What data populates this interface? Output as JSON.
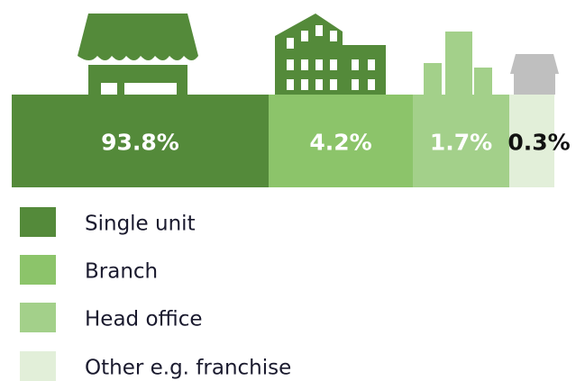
{
  "chart_data": {
    "type": "stacked-bar",
    "series": [
      {
        "name": "Single unit",
        "color": "#548a3a",
        "values": [
          93.8
        ],
        "value_labels": [
          "93.8%"
        ]
      },
      {
        "name": "Branch",
        "color": "#8cc46a",
        "values": [
          4.2
        ],
        "value_labels": [
          "4.2%"
        ]
      },
      {
        "name": "Head office",
        "color": "#a3d08a",
        "values": [
          1.7
        ],
        "value_labels": [
          "1.7%"
        ]
      },
      {
        "name": "Other e.g. franchise",
        "color": "#e2efd9",
        "values": [
          0.3
        ],
        "value_labels": [
          "0.3%"
        ]
      }
    ]
  }
}
